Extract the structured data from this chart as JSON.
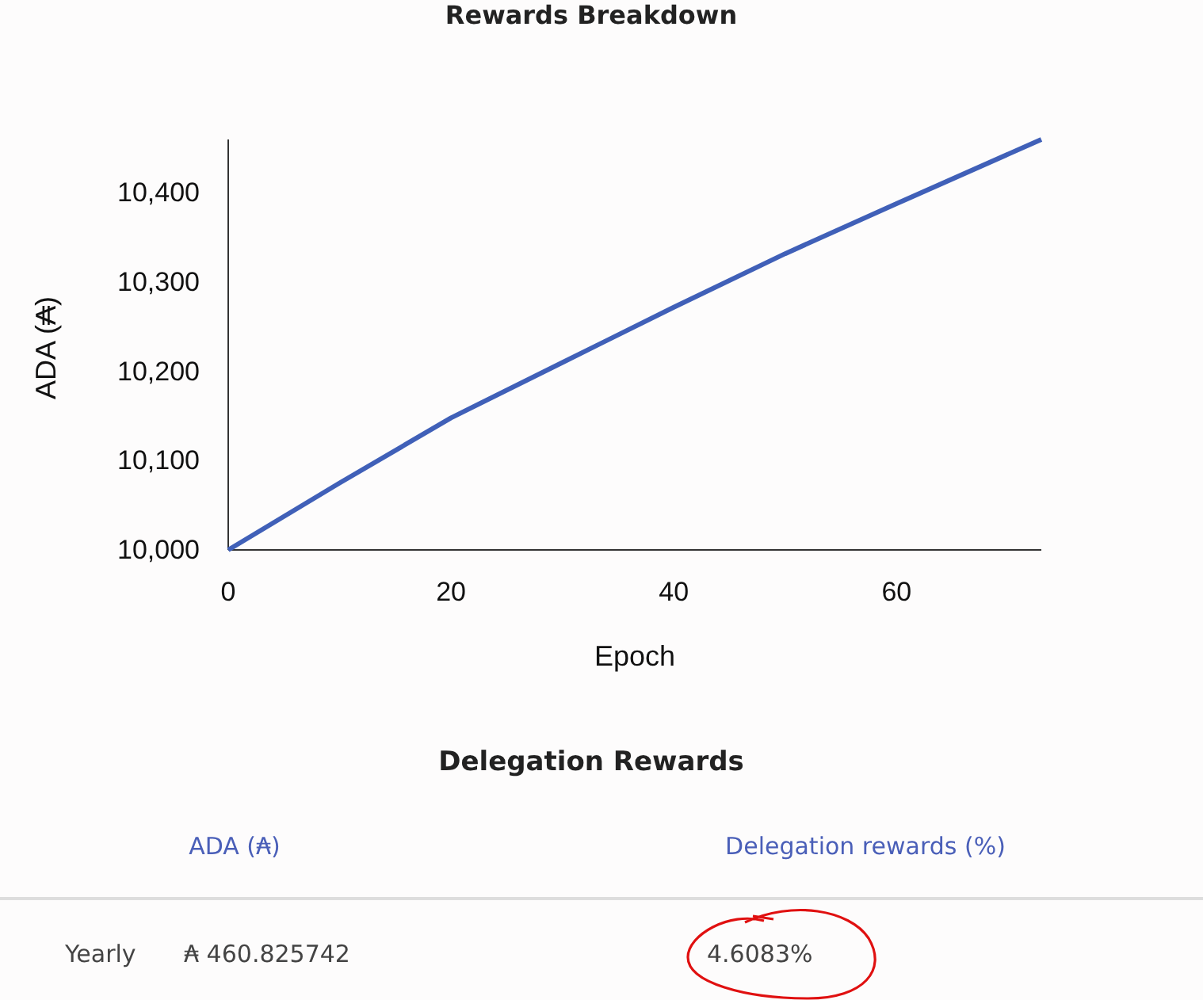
{
  "chart_data": {
    "type": "line",
    "title": "Rewards Breakdown",
    "xlabel": "Epoch",
    "ylabel": "ADA (₳)",
    "x": [
      0,
      10,
      20,
      30,
      40,
      50,
      60,
      73
    ],
    "series": [
      {
        "color": "#4060b8",
        "values": [
          10000,
          10075,
          10148,
          10210,
          10272,
          10332,
          10388,
          10460
        ]
      }
    ],
    "xlim": [
      0,
      73
    ],
    "xticks": [
      0,
      20,
      40,
      60
    ],
    "ylim": [
      10000,
      10460
    ],
    "yticks": [
      {
        "value": 10000,
        "label": "10,000"
      },
      {
        "value": 10100,
        "label": "10,100"
      },
      {
        "value": 10200,
        "label": "10,200"
      },
      {
        "value": 10300,
        "label": "10,300"
      },
      {
        "value": 10400,
        "label": "10,400"
      }
    ],
    "grid": false,
    "marker": "none",
    "line_style": "solid",
    "annotations": [
      "Delegation Rewards",
      "ADA (₳)",
      "Delegation rewards (%)",
      "Yearly",
      "₳ 460.825742",
      "4.6083%"
    ]
  }
}
